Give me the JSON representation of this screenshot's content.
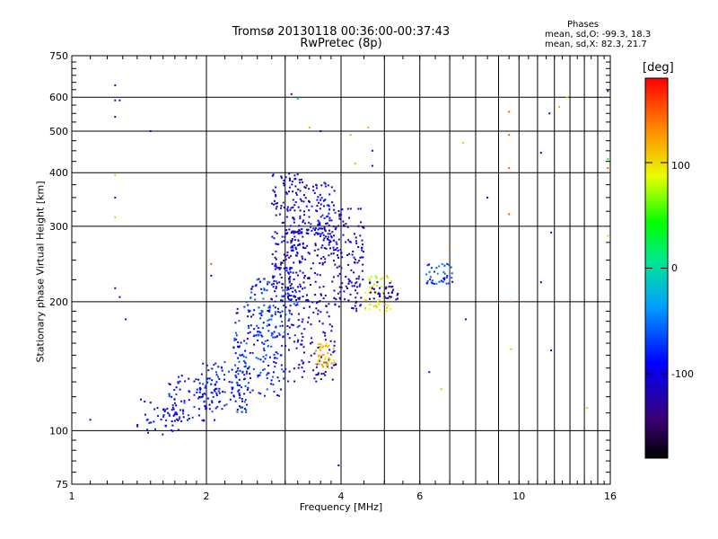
{
  "title": {
    "line1": "Tromsø 20130118 00:36:00-00:37:43",
    "line2": "RwPretec (8p)"
  },
  "phase_stats": {
    "heading": "Phases",
    "o_line": "mean, sd,O: -99.3, 18.3",
    "x_line": "mean, sd,X: 82.3, 21.7"
  },
  "colorbar": {
    "unit": "[deg]",
    "tick_labels": [
      "100",
      "0",
      "-100"
    ],
    "tick_values": [
      100,
      0,
      -100
    ],
    "range": [
      -180,
      180
    ]
  },
  "chart_data": {
    "type": "scatter",
    "xlabel": "Frequency [MHz]",
    "ylabel": "Stationary phase Virtual Height [km]",
    "xscale": "log",
    "yscale": "log",
    "xlim": [
      1,
      16
    ],
    "ylim": [
      75,
      750
    ],
    "xtick_labels": [
      "1",
      "2",
      "4",
      "6",
      "10",
      "16"
    ],
    "xtick_values": [
      1,
      2,
      4,
      6,
      10,
      16
    ],
    "xminor_values": [
      3,
      5,
      7,
      8,
      9,
      11,
      12,
      13,
      14,
      15
    ],
    "ytick_labels": [
      "75",
      "100",
      "200",
      "300",
      "400",
      "500",
      "600",
      "750"
    ],
    "ytick_values": [
      75,
      100,
      200,
      300,
      400,
      500,
      600,
      750
    ],
    "grid": true,
    "colorscale": "rainbow (black to red)",
    "clusters": [
      {
        "x_range": [
          1.4,
          1.75
        ],
        "y_range": [
          96,
          120
        ],
        "phase": -95,
        "count": 40
      },
      {
        "x_range": [
          1.6,
          2.1
        ],
        "y_range": [
          105,
          135
        ],
        "phase": -90,
        "count": 90
      },
      {
        "x_range": [
          1.95,
          2.5
        ],
        "y_range": [
          110,
          145
        ],
        "phase": -85,
        "count": 100
      },
      {
        "x_range": [
          2.3,
          3.0
        ],
        "y_range": [
          120,
          200
        ],
        "phase": -80,
        "count": 170
      },
      {
        "x_range": [
          2.5,
          3.2
        ],
        "y_range": [
          165,
          230
        ],
        "phase": -75,
        "count": 90
      },
      {
        "x_range": [
          2.8,
          3.3
        ],
        "y_range": [
          200,
          400
        ],
        "phase": -105,
        "count": 200
      },
      {
        "x_range": [
          3.0,
          3.9
        ],
        "y_range": [
          130,
          300
        ],
        "phase": -110,
        "count": 240
      },
      {
        "x_range": [
          3.3,
          3.9
        ],
        "y_range": [
          280,
          380
        ],
        "phase": -100,
        "count": 100
      },
      {
        "x_range": [
          3.5,
          3.9
        ],
        "y_range": [
          140,
          160
        ],
        "phase": 110,
        "count": 45
      },
      {
        "x_range": [
          3.9,
          4.5
        ],
        "y_range": [
          190,
          330
        ],
        "phase": -110,
        "count": 120
      },
      {
        "x_range": [
          4.5,
          5.2
        ],
        "y_range": [
          190,
          230
        ],
        "phase": 90,
        "count": 50
      },
      {
        "x_range": [
          4.6,
          5.4
        ],
        "y_range": [
          200,
          225
        ],
        "phase": -110,
        "count": 35
      },
      {
        "x_range": [
          6.2,
          7.1
        ],
        "y_range": [
          220,
          245
        ],
        "phase": -70,
        "count": 40
      }
    ],
    "points": [
      {
        "x": 1.1,
        "y": 106,
        "phase": -90
      },
      {
        "x": 1.25,
        "y": 640,
        "phase": -120
      },
      {
        "x": 1.25,
        "y": 590,
        "phase": -120
      },
      {
        "x": 1.25,
        "y": 540,
        "phase": -120
      },
      {
        "x": 1.28,
        "y": 590,
        "phase": -95
      },
      {
        "x": 1.25,
        "y": 350,
        "phase": -100
      },
      {
        "x": 1.25,
        "y": 395,
        "phase": 110
      },
      {
        "x": 1.25,
        "y": 315,
        "phase": 110
      },
      {
        "x": 1.25,
        "y": 215,
        "phase": -110
      },
      {
        "x": 1.28,
        "y": 205,
        "phase": -110
      },
      {
        "x": 1.32,
        "y": 182,
        "phase": -110
      },
      {
        "x": 1.5,
        "y": 500,
        "phase": -95
      },
      {
        "x": 2.05,
        "y": 245,
        "phase": 150
      },
      {
        "x": 2.05,
        "y": 230,
        "phase": -90
      },
      {
        "x": 3.1,
        "y": 610,
        "phase": -110
      },
      {
        "x": 3.2,
        "y": 595,
        "phase": 10
      },
      {
        "x": 3.4,
        "y": 510,
        "phase": 120
      },
      {
        "x": 3.6,
        "y": 500,
        "phase": -95
      },
      {
        "x": 3.95,
        "y": 83,
        "phase": -90
      },
      {
        "x": 4.2,
        "y": 490,
        "phase": 120
      },
      {
        "x": 4.3,
        "y": 420,
        "phase": 120
      },
      {
        "x": 4.6,
        "y": 510,
        "phase": 120
      },
      {
        "x": 4.7,
        "y": 450,
        "phase": -100
      },
      {
        "x": 4.7,
        "y": 415,
        "phase": -95
      },
      {
        "x": 6.3,
        "y": 137,
        "phase": -90
      },
      {
        "x": 6.7,
        "y": 125,
        "phase": 110
      },
      {
        "x": 7.0,
        "y": 268,
        "phase": 150
      },
      {
        "x": 7.5,
        "y": 470,
        "phase": 110
      },
      {
        "x": 7.6,
        "y": 182,
        "phase": -95
      },
      {
        "x": 8.5,
        "y": 350,
        "phase": -90
      },
      {
        "x": 9.5,
        "y": 555,
        "phase": 150
      },
      {
        "x": 9.5,
        "y": 490,
        "phase": 150
      },
      {
        "x": 9.5,
        "y": 410,
        "phase": 150
      },
      {
        "x": 9.5,
        "y": 320,
        "phase": 150
      },
      {
        "x": 9.6,
        "y": 200,
        "phase": 150
      },
      {
        "x": 9.6,
        "y": 155,
        "phase": 110
      },
      {
        "x": 11.2,
        "y": 445,
        "phase": -100
      },
      {
        "x": 11.2,
        "y": 222,
        "phase": -100
      },
      {
        "x": 11.7,
        "y": 550,
        "phase": -90
      },
      {
        "x": 11.8,
        "y": 290,
        "phase": -90
      },
      {
        "x": 11.8,
        "y": 154,
        "phase": -90
      },
      {
        "x": 12.3,
        "y": 570,
        "phase": 120
      },
      {
        "x": 12.8,
        "y": 600,
        "phase": 110
      },
      {
        "x": 14.2,
        "y": 113,
        "phase": 110
      },
      {
        "x": 15.8,
        "y": 620,
        "phase": -100
      },
      {
        "x": 15.8,
        "y": 430,
        "phase": 40
      },
      {
        "x": 15.8,
        "y": 410,
        "phase": 150
      },
      {
        "x": 15.8,
        "y": 285,
        "phase": 110
      }
    ]
  }
}
